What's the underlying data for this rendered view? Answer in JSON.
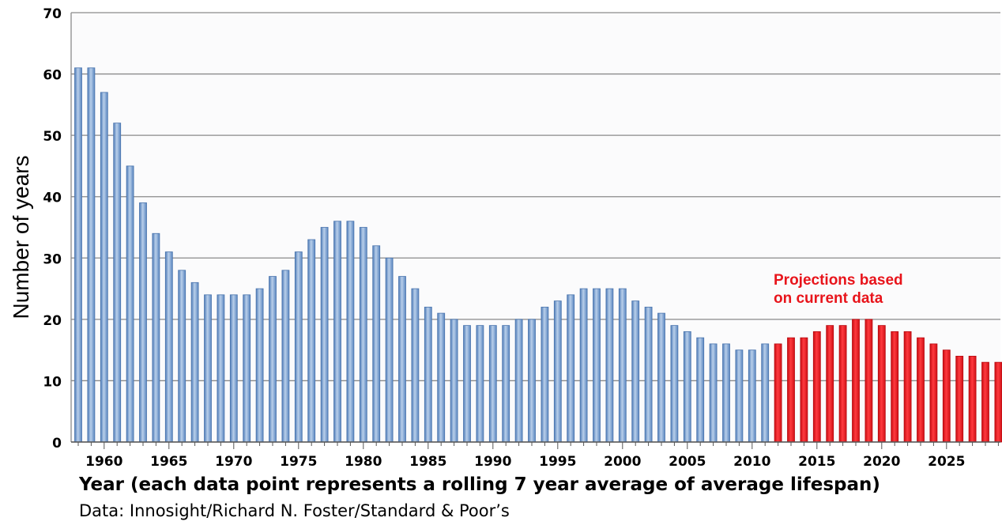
{
  "chart_data": {
    "type": "bar",
    "xlabel": "Year (each data point represents a rolling 7 year average of average lifespan)",
    "ylabel": "Number of years",
    "ylim": [
      0,
      70
    ],
    "yticks": [
      0,
      10,
      20,
      30,
      40,
      50,
      60,
      70
    ],
    "xticks": [
      1960,
      1965,
      1970,
      1975,
      1980,
      1985,
      1990,
      1995,
      2000,
      2005,
      2010,
      2015,
      2020,
      2025
    ],
    "grid": true,
    "annotation": {
      "line1": "Projections based",
      "line2": "on current data",
      "color": "#e8141b"
    },
    "historical_color": "#6f97c9",
    "projection_color": "#e8141b",
    "series": [
      {
        "x": [
          1958,
          1959,
          1960,
          1961,
          1962,
          1963,
          1964,
          1965,
          1966,
          1967,
          1968,
          1969,
          1970,
          1971,
          1972,
          1973,
          1974,
          1975,
          1976,
          1977,
          1978,
          1979,
          1980,
          1981,
          1982,
          1983,
          1984,
          1985,
          1986,
          1987,
          1988,
          1989,
          1990,
          1991,
          1992,
          1993,
          1994,
          1995,
          1996,
          1997,
          1998,
          1999,
          2000,
          2001,
          2002,
          2003,
          2004,
          2005,
          2006,
          2007,
          2008,
          2009,
          2010,
          2011
        ],
        "values": [
          61,
          61,
          57,
          52,
          45,
          39,
          34,
          31,
          28,
          26,
          24,
          24,
          24,
          24,
          25,
          27,
          28,
          31,
          33,
          35,
          36,
          36,
          35,
          32,
          30,
          27,
          25,
          22,
          21,
          20,
          19,
          19,
          19,
          19,
          20,
          20,
          22,
          23,
          24,
          25,
          25,
          25,
          25,
          23,
          22,
          21,
          19,
          18,
          17,
          16,
          16,
          15,
          15,
          16
        ]
      },
      {
        "x": [
          2012,
          2013,
          2014,
          2015,
          2016,
          2017,
          2018,
          2019,
          2020,
          2021,
          2022,
          2023,
          2024,
          2025,
          2026,
          2027,
          2028,
          2029
        ],
        "values": [
          16,
          17,
          17,
          18,
          19,
          19,
          20,
          20,
          19,
          18,
          18,
          17,
          16,
          15,
          14,
          14,
          13,
          13
        ]
      }
    ]
  },
  "source": "Data: Innosight/Richard N. Foster/Standard & Poor’s"
}
